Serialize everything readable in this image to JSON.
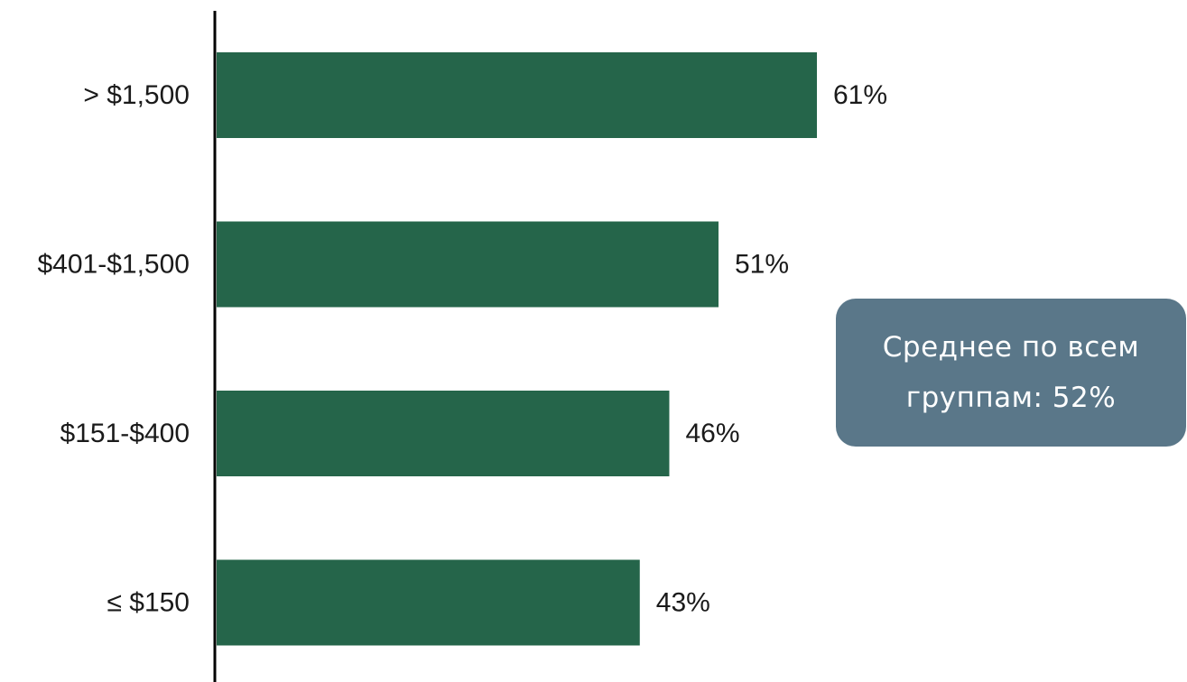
{
  "chart_data": {
    "type": "bar",
    "orientation": "horizontal",
    "categories": [
      ">$1,500",
      "$401-$1,500",
      "$151-$400",
      "≤$150"
    ],
    "categories_display": [
      "> $1,500",
      "$401-$1,500",
      "$151-$400",
      "≤ $150"
    ],
    "values": [
      61,
      51,
      46,
      43
    ],
    "value_labels": [
      "61%",
      "51%",
      "46%",
      "43%"
    ],
    "xlim": [
      0,
      100
    ],
    "grid": false,
    "bar_color": "#25654a",
    "annotation": {
      "line1": "Среднее по всем",
      "line2": "группам: 52%",
      "color": "#5a7789"
    }
  }
}
